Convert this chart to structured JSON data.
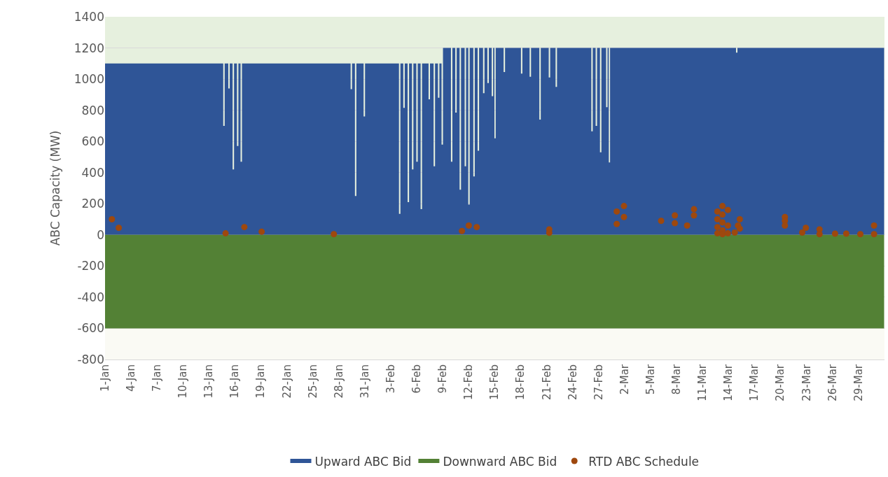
{
  "chart_data": {
    "type": "area",
    "ylabel": "ABC Capacity (MW)",
    "xlim": [
      "--01-01",
      "--04-01"
    ],
    "xticks": [
      {
        "value": "--01-01",
        "label": "1-Jan"
      },
      {
        "value": "--01-04",
        "label": "4-Jan"
      },
      {
        "value": "--01-07",
        "label": "7-Jan"
      },
      {
        "value": "--01-10",
        "label": "10-Jan"
      },
      {
        "value": "--01-13",
        "label": "13-Jan"
      },
      {
        "value": "--01-16",
        "label": "16-Jan"
      },
      {
        "value": "--01-19",
        "label": "19-Jan"
      },
      {
        "value": "--01-22",
        "label": "22-Jan"
      },
      {
        "value": "--01-25",
        "label": "25-Jan"
      },
      {
        "value": "--01-28",
        "label": "28-Jan"
      },
      {
        "value": "--01-31",
        "label": "31-Jan"
      },
      {
        "value": "--02-03",
        "label": "3-Feb"
      },
      {
        "value": "--02-06",
        "label": "6-Feb"
      },
      {
        "value": "--02-09",
        "label": "9-Feb"
      },
      {
        "value": "--02-12",
        "label": "12-Feb"
      },
      {
        "value": "--02-15",
        "label": "15-Feb"
      },
      {
        "value": "--02-18",
        "label": "18-Feb"
      },
      {
        "value": "--02-21",
        "label": "21-Feb"
      },
      {
        "value": "--02-24",
        "label": "24-Feb"
      },
      {
        "value": "--02-27",
        "label": "27-Feb"
      },
      {
        "value": "--03-02",
        "label": "2-Mar"
      },
      {
        "value": "--03-05",
        "label": "5-Mar"
      },
      {
        "value": "--03-08",
        "label": "8-Mar"
      },
      {
        "value": "--03-11",
        "label": "11-Mar"
      },
      {
        "value": "--03-14",
        "label": "14-Mar"
      },
      {
        "value": "--03-17",
        "label": "17-Mar"
      },
      {
        "value": "--03-20",
        "label": "20-Mar"
      },
      {
        "value": "--03-23",
        "label": "23-Mar"
      },
      {
        "value": "--03-26",
        "label": "26-Mar"
      },
      {
        "value": "--03-29",
        "label": "29-Mar"
      }
    ],
    "ylim": [
      -800,
      1400
    ],
    "yticks": [
      -800,
      -600,
      -400,
      -200,
      0,
      200,
      400,
      600,
      800,
      1000,
      1200,
      1400
    ],
    "grid": "y",
    "legend": "bottom",
    "bands": [
      {
        "axis": "y",
        "from": 0,
        "to": 1400,
        "color": "#e6f0de"
      },
      {
        "axis": "y",
        "from": -800,
        "to": -600,
        "color": "#fafaf4"
      }
    ],
    "series": [
      {
        "name": "Upward ABC Bid",
        "color": "#2f5597",
        "x": [
          "--01-01T00:00",
          "--01-14T14:00",
          "--01-14T17:00",
          "--01-14T22:00",
          "--01-15T04:00",
          "--01-15T07:00",
          "--01-15T12:00",
          "--01-15T16:00",
          "--01-15T19:00",
          "--01-16T00:00",
          "--01-16T04:00",
          "--01-16T07:00",
          "--01-16T12:00",
          "--01-16T14:00",
          "--01-16T17:00",
          "--01-16T22:00",
          "--01-29T07:00",
          "--01-29T10:00",
          "--01-29T15:00",
          "--01-29T19:00",
          "--01-29T22:00",
          "--01-30T03:00",
          "--01-30T19:00",
          "--01-30T22:00",
          "--01-31T03:00",
          "--02-03T21:00",
          "--02-04T00:00",
          "--02-04T05:00",
          "--02-04T09:00",
          "--02-04T12:00",
          "--02-04T17:00",
          "--02-04T21:00",
          "--02-05T00:00",
          "--02-05T05:00",
          "--02-05T09:00",
          "--02-05T12:00",
          "--02-05T17:00",
          "--02-05T21:00",
          "--02-06T00:00",
          "--02-06T05:00",
          "--02-06T09:00",
          "--02-06T12:00",
          "--02-06T17:00",
          "--02-07T07:00",
          "--02-07T10:00",
          "--02-07T15:00",
          "--02-07T21:00",
          "--02-08T00:00",
          "--02-08T05:00",
          "--02-08T09:00",
          "--02-08T12:00",
          "--02-08T17:00",
          "--02-08T19:00",
          "--02-08T22:00",
          "--02-09T03:00",
          "--02-09T21:00",
          "--02-10T00:00",
          "--02-10T05:00",
          "--02-10T09:00",
          "--02-10T12:00",
          "--02-10T17:00",
          "--02-10T21:00",
          "--02-11T00:00",
          "--02-11T05:00",
          "--02-11T11:00",
          "--02-11T14:00",
          "--02-11T19:00",
          "--02-11T21:00",
          "--02-12T00:00",
          "--02-12T05:00",
          "--02-12T11:00",
          "--02-12T14:00",
          "--02-12T19:00",
          "--02-12T23:00",
          "--02-13T02:00",
          "--02-13T07:00",
          "--02-13T14:00",
          "--02-13T17:00",
          "--02-13T22:00",
          "--02-14T02:00",
          "--02-14T05:00",
          "--02-14T10:00",
          "--02-14T14:00",
          "--02-14T17:00",
          "--02-14T22:00",
          "--02-14T22:00",
          "--02-15T00:00",
          "--02-15T05:00",
          "--02-15T23:00",
          "--02-16T02:00",
          "--02-16T07:00",
          "--02-17T23:00",
          "--02-18T02:00",
          "--02-18T07:00",
          "--02-18T23:00",
          "--02-19T02:00",
          "--02-19T07:00",
          "--02-20T02:00",
          "--02-20T05:00",
          "--02-20T10:00",
          "--02-21T04:00",
          "--02-21T07:00",
          "--02-21T12:00",
          "--02-21T23:00",
          "--02-22T02:00",
          "--02-22T07:00",
          "--02-26T02:00",
          "--02-26T05:00",
          "--02-26T10:00",
          "--02-26T14:00",
          "--02-26T17:00",
          "--02-26T22:00",
          "--02-27T02:00",
          "--02-27T05:00",
          "--02-27T10:00",
          "--02-27T19:00",
          "--02-27T22:00",
          "--02-28T03:00",
          "--02-28T03:00",
          "--02-28T05:00",
          "--02-28T10:00",
          "--03-14T19:00",
          "--03-14T22:00",
          "--03-15T03:00",
          "--03-31T23:00"
        ],
        "values": [
          1100,
          1100,
          700,
          1100,
          1100,
          940,
          1100,
          1100,
          420,
          1100,
          1100,
          570,
          1100,
          1100,
          470,
          1100,
          1100,
          935,
          1100,
          1100,
          250,
          1100,
          1100,
          760,
          1100,
          1100,
          135,
          1100,
          1100,
          815,
          1100,
          1100,
          210,
          1100,
          1100,
          420,
          1100,
          1100,
          470,
          1100,
          1100,
          165,
          1100,
          1100,
          870,
          1100,
          1100,
          440,
          1100,
          1100,
          880,
          1100,
          1100,
          580,
          1200,
          1200,
          470,
          1200,
          1200,
          785,
          1200,
          1200,
          290,
          1200,
          1200,
          440,
          1200,
          1200,
          195,
          1200,
          1200,
          375,
          1200,
          1200,
          540,
          1200,
          1200,
          910,
          1200,
          1200,
          975,
          1200,
          1200,
          890,
          1200,
          1200,
          620,
          1200,
          1200,
          1045,
          1200,
          1200,
          1035,
          1200,
          1200,
          1015,
          1200,
          1200,
          740,
          1200,
          1200,
          1010,
          1200,
          1200,
          950,
          1200,
          1200,
          665,
          1200,
          1200,
          700,
          1200,
          1200,
          530,
          1200,
          1200,
          820,
          1200,
          1200,
          465,
          1200,
          1200,
          1170,
          1200,
          1200
        ]
      },
      {
        "name": "Downward ABC Bid",
        "color": "#538135",
        "x": [
          "--01-01T00:00",
          "--03-31T23:00"
        ],
        "values": [
          -600,
          -600
        ]
      },
      {
        "name": "RTD ABC Schedule",
        "type": "scatter",
        "color": "#9e480e",
        "marker": "circle",
        "x": [
          "--01-01T19:00",
          "--01-02T14:00",
          "--01-14T22:00",
          "--01-17T02:00",
          "--01-19T02:00",
          "--01-27T10:00",
          "--02-11T05:00",
          "--02-12T00:00",
          "--02-12T22:00",
          "--02-21T07:00",
          "--02-21T07:00",
          "--03-01T02:00",
          "--03-01T22:00",
          "--03-01T22:00",
          "--03-01T02:00",
          "--03-06T05:00",
          "--03-07T19:00",
          "--03-07T19:00",
          "--03-09T05:00",
          "--03-10T00:00",
          "--03-10T00:00",
          "--03-12T17:00",
          "--03-12T17:00",
          "--03-12T17:00",
          "--03-12T17:00",
          "--03-13T07:00",
          "--03-13T07:00",
          "--03-13T07:00",
          "--03-13T07:00",
          "--03-13T07:00",
          "--03-13T22:00",
          "--03-13T22:00",
          "--03-13T22:00",
          "--03-14T17:00",
          "--03-15T02:00",
          "--03-15T07:00",
          "--03-15T07:00",
          "--03-20T12:00",
          "--03-20T12:00",
          "--03-20T12:00",
          "--03-22T12:00",
          "--03-22T22:00",
          "--03-24T12:00",
          "--03-24T12:00",
          "--03-26T07:00",
          "--03-27T14:00",
          "--03-29T05:00",
          "--03-30T19:00",
          "--03-30T19:00"
        ],
        "values": [
          100,
          45,
          10,
          50,
          20,
          5,
          25,
          60,
          50,
          35,
          13,
          150,
          185,
          115,
          70,
          90,
          125,
          75,
          60,
          165,
          125,
          150,
          100,
          50,
          10,
          185,
          130,
          80,
          30,
          5,
          160,
          60,
          10,
          15,
          60,
          100,
          40,
          115,
          90,
          60,
          15,
          45,
          35,
          5,
          8,
          8,
          5,
          60,
          5
        ]
      }
    ]
  }
}
